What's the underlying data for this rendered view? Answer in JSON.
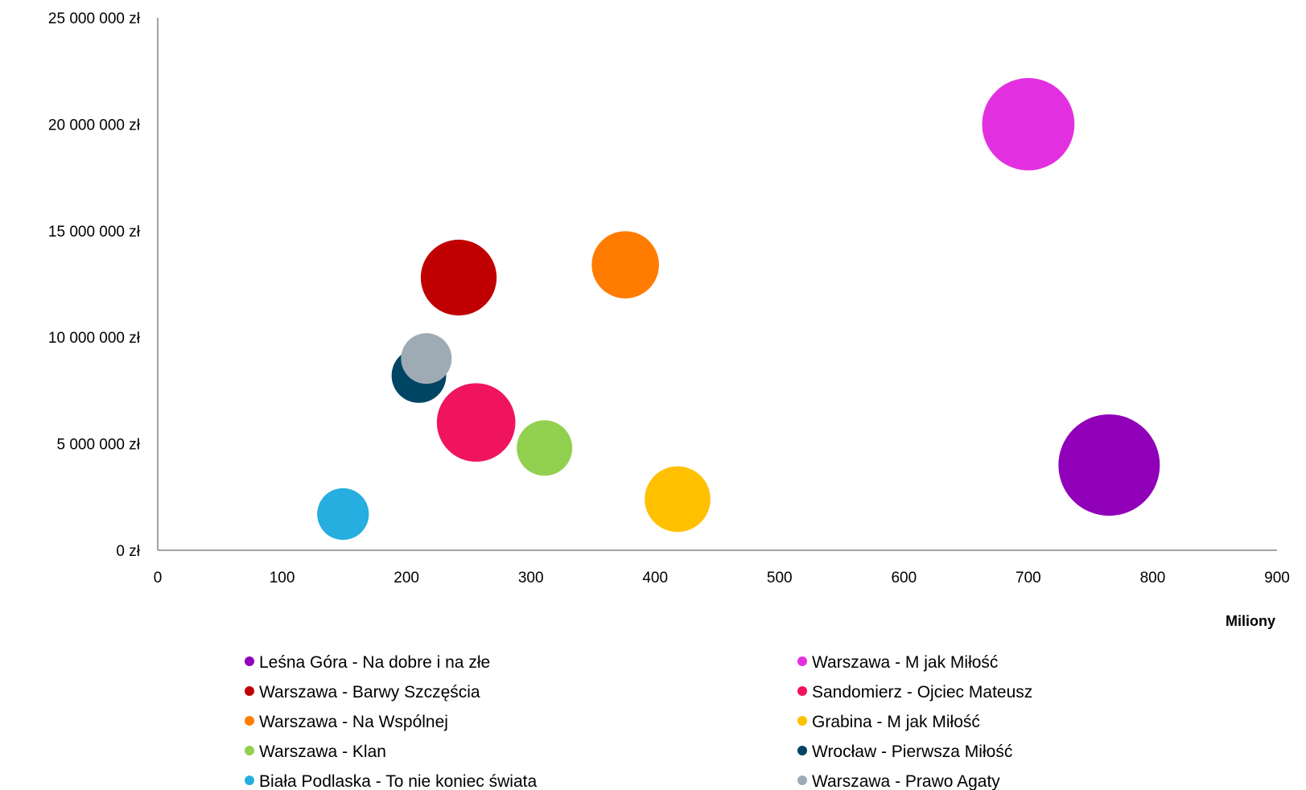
{
  "chart_data": {
    "type": "bubble",
    "x_unit_label": "Miliony",
    "xlim": [
      0,
      900
    ],
    "ylim": [
      0,
      25000000
    ],
    "x_ticks": [
      {
        "value": 0,
        "label": "0"
      },
      {
        "value": 100,
        "label": "100"
      },
      {
        "value": 200,
        "label": "200"
      },
      {
        "value": 300,
        "label": "300"
      },
      {
        "value": 400,
        "label": "400"
      },
      {
        "value": 500,
        "label": "500"
      },
      {
        "value": 600,
        "label": "600"
      },
      {
        "value": 700,
        "label": "700"
      },
      {
        "value": 800,
        "label": "800"
      },
      {
        "value": 900,
        "label": "900"
      }
    ],
    "y_ticks": [
      {
        "value": 0,
        "label": "0 zł"
      },
      {
        "value": 5000000,
        "label": "5 000 000 zł"
      },
      {
        "value": 10000000,
        "label": "10 000 000 zł"
      },
      {
        "value": 15000000,
        "label": "15 000 000 zł"
      },
      {
        "value": 20000000,
        "label": "20 000 000 zł"
      },
      {
        "value": 25000000,
        "label": "25 000 000 zł"
      }
    ],
    "grid": false,
    "legend_position": "bottom",
    "series": [
      {
        "name": "Leśna Góra - Na dobre i na złe",
        "color": "#9000B9",
        "x": 765,
        "y": 4000000,
        "size": 100
      },
      {
        "name": "Warszawa - M jak Miłość",
        "color": "#E230E0",
        "x": 700,
        "y": 20000000,
        "size": 83
      },
      {
        "name": "Warszawa - Barwy Szczęścia",
        "color": "#C00000",
        "x": 242,
        "y": 12800000,
        "size": 56
      },
      {
        "name": "Sandomierz - Ojciec Mateusz",
        "color": "#F0145E",
        "x": 256,
        "y": 6000000,
        "size": 60
      },
      {
        "name": "Warszawa - Na Wspólnej",
        "color": "#FF7C00",
        "x": 376,
        "y": 13400000,
        "size": 44
      },
      {
        "name": "Grabina - M jak Miłość",
        "color": "#FFC000",
        "x": 418,
        "y": 2400000,
        "size": 42
      },
      {
        "name": "Warszawa - Klan",
        "color": "#92D050",
        "x": 311,
        "y": 4800000,
        "size": 30
      },
      {
        "name": "Wrocław - Pierwsza Miłość",
        "color": "#004563",
        "x": 210,
        "y": 8200000,
        "size": 29
      },
      {
        "name": "Biała Podlaska - To nie koniec świata",
        "color": "#25AEDF",
        "x": 149,
        "y": 1700000,
        "size": 26
      },
      {
        "name": "Warszawa - Prawo Agaty",
        "color": "#9EABB4",
        "x": 216,
        "y": 9000000,
        "size": 25
      }
    ]
  }
}
